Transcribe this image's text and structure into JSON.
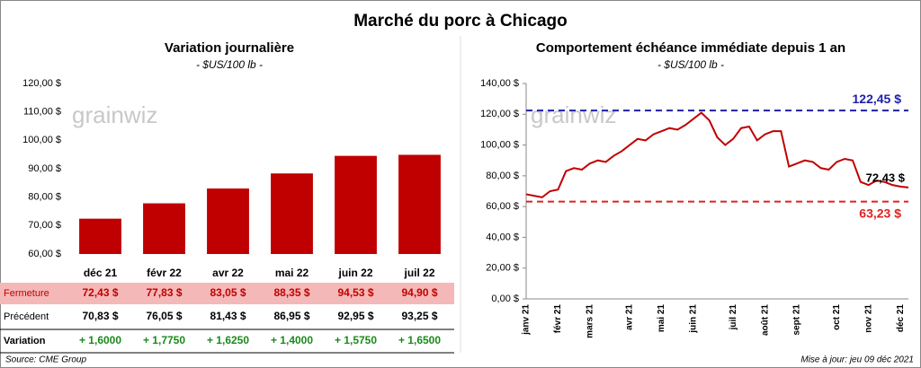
{
  "title": "Marché du porc à Chicago",
  "logo": "grainwiz",
  "chart_data": [
    {
      "type": "bar",
      "title": "Variation journalière",
      "subtitle": "- $US/100 lb -",
      "categories": [
        "déc 21",
        "févr 22",
        "avr 22",
        "mai 22",
        "juin 22",
        "juil 22"
      ],
      "series": [
        {
          "name": "Fermeture",
          "color": "#c00000",
          "values": [
            72.43,
            77.83,
            83.05,
            88.35,
            94.53,
            94.9
          ],
          "value_labels": [
            "72,43  $",
            "77,83  $",
            "83,05  $",
            "88,35  $",
            "94,53  $",
            "94,90  $"
          ]
        }
      ],
      "ylim": [
        60,
        120
      ],
      "yticks": [
        {
          "value": 60,
          "label": "60,00 $"
        },
        {
          "value": 70,
          "label": "70,00 $"
        },
        {
          "value": 80,
          "label": "80,00 $"
        },
        {
          "value": 90,
          "label": "90,00 $"
        },
        {
          "value": 100,
          "label": "100,00 $"
        },
        {
          "value": 110,
          "label": "110,00 $"
        },
        {
          "value": 120,
          "label": "120,00 $"
        }
      ],
      "grid": false
    },
    {
      "type": "line",
      "title": "Comportement  échéance immédiate depuis 1 an",
      "subtitle": "- $US/100 lb -",
      "categories": [
        "janv 21",
        null,
        null,
        null,
        "févr 21",
        null,
        null,
        null,
        "mars 21",
        null,
        null,
        null,
        null,
        "avr 21",
        null,
        null,
        null,
        "mai 21",
        null,
        null,
        null,
        "juin 21",
        null,
        null,
        null,
        null,
        "juil 21",
        null,
        null,
        null,
        "août 21",
        null,
        null,
        null,
        "sept 21",
        null,
        null,
        null,
        null,
        "oct 21",
        null,
        null,
        null,
        "nov 21",
        null,
        null,
        null,
        "déc 21",
        null
      ],
      "series": [
        {
          "name": "Échéance immédiate",
          "color": "#c00000",
          "values": [
            68,
            67,
            66,
            70,
            71,
            83,
            85,
            84,
            88,
            90,
            89,
            93,
            96,
            100,
            104,
            103,
            107,
            109,
            111,
            110,
            113,
            117,
            121,
            116,
            105,
            100,
            104,
            111,
            112,
            103,
            107,
            109,
            109,
            86,
            88,
            90,
            89,
            85,
            84,
            89,
            91,
            90,
            76,
            74,
            77,
            76,
            74,
            73,
            72.43
          ],
          "value_labels": [
            null,
            null,
            null,
            null,
            null,
            null,
            null,
            null,
            null,
            null,
            null,
            null,
            null,
            null,
            null,
            null,
            null,
            null,
            null,
            null,
            null,
            null,
            null,
            null,
            null,
            null,
            null,
            null,
            null,
            null,
            null,
            null,
            null,
            null,
            null,
            null,
            null,
            null,
            null,
            null,
            null,
            null,
            null,
            null,
            null,
            null,
            null,
            null,
            "72,43 $"
          ]
        }
      ],
      "reference_lines": [
        {
          "value": 122.45,
          "label": "122,45 $",
          "color": "#1f1fa8"
        },
        {
          "value": 63.23,
          "label": "63,23 $",
          "color": "#e02020"
        }
      ],
      "ylim": [
        0,
        140
      ],
      "yticks": [
        {
          "value": 0,
          "label": "0,00 $"
        },
        {
          "value": 20,
          "label": "20,00 $"
        },
        {
          "value": 40,
          "label": "40,00 $"
        },
        {
          "value": 60,
          "label": "60,00 $"
        },
        {
          "value": 80,
          "label": "80,00 $"
        },
        {
          "value": 100,
          "label": "100,00 $"
        },
        {
          "value": 120,
          "label": "120,00 $"
        },
        {
          "value": 140,
          "label": "140,00 $"
        }
      ],
      "grid": false
    }
  ],
  "table": {
    "rows": [
      [
        "Précédent",
        "70,83  $",
        "76,05  $",
        "81,43  $",
        "86,95  $",
        "92,95  $",
        "93,25  $"
      ],
      [
        "Variation",
        "+ 1,6000",
        "+ 1,7750",
        "+ 1,6250",
        "+ 1,4000",
        "+ 1,5750",
        "+ 1,6500"
      ]
    ]
  },
  "footer": {
    "source": "Source: CME Group",
    "updated": "Mise à jour: jeu 09 déc 2021"
  }
}
